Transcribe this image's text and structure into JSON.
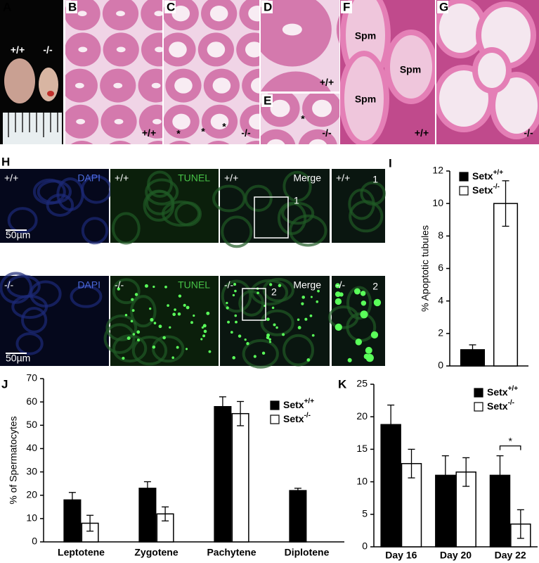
{
  "figure": {
    "image_panels": [
      {
        "label": "A",
        "texts": [
          "+/+",
          "-/-"
        ]
      },
      {
        "label": "B",
        "texts": [
          "+/+"
        ]
      },
      {
        "label": "C",
        "texts": [
          "*",
          "*",
          "*",
          "-/-"
        ]
      },
      {
        "label": "D",
        "texts": [
          "+/+"
        ]
      },
      {
        "label": "E",
        "texts": [
          "*",
          "-/-"
        ]
      },
      {
        "label": "F",
        "texts": [
          "Spm",
          "Spm",
          "Spm",
          "+/+"
        ]
      },
      {
        "label": "G",
        "texts": [
          "-/-"
        ]
      }
    ],
    "fluorescence": {
      "label": "H",
      "rows": [
        {
          "cells": [
            [
              "+/+",
              "DAPI"
            ],
            [
              "+/+",
              "TUNEL"
            ],
            [
              "+/+",
              "Merge",
              "1"
            ],
            [
              "+/+",
              "1"
            ]
          ],
          "scale_bar": "50µm"
        },
        {
          "cells": [
            [
              "-/-",
              "DAPI"
            ],
            [
              "-/-",
              "TUNEL"
            ],
            [
              "-/-",
              "Merge",
              "2"
            ],
            [
              "-/-",
              "2"
            ]
          ],
          "scale_bar": "50µm"
        }
      ]
    }
  },
  "chart_data": [
    {
      "type": "bar",
      "panel_label": "I",
      "ylabel": "% Apoptotic tubules",
      "categories": [
        null
      ],
      "series": [
        {
          "name": "Setx",
          "superscript": "+/+",
          "color": "#000000",
          "values": [
            1.0
          ],
          "errors": [
            0.3
          ]
        },
        {
          "name": "Setx",
          "superscript": "-/-",
          "color": "#ffffff",
          "values": [
            10.0
          ],
          "errors": [
            1.4
          ]
        }
      ],
      "ylim": [
        0,
        12
      ],
      "yticks": [
        0,
        2,
        4,
        6,
        8,
        10,
        12
      ],
      "legend": "upper left"
    },
    {
      "type": "bar",
      "panel_label": "J",
      "ylabel": "% of Spermatocytes",
      "categories": [
        "Leptotene",
        "Zygotene",
        "Pachytene",
        "Diplotene"
      ],
      "series": [
        {
          "name": "Setx",
          "superscript": "+/+",
          "color": "#000000",
          "values": [
            18,
            23,
            58,
            22
          ],
          "errors": [
            3.2,
            2.8,
            4.2,
            1
          ]
        },
        {
          "name": "Setx",
          "superscript": "-/-",
          "color": "#ffffff",
          "values": [
            8,
            12,
            55,
            null
          ],
          "errors": [
            3.4,
            3,
            5.2,
            null
          ]
        }
      ],
      "ylim": [
        0,
        70
      ],
      "yticks": [
        0,
        10,
        20,
        30,
        40,
        50,
        60,
        70
      ],
      "legend": "upper right"
    },
    {
      "type": "bar",
      "panel_label": "K",
      "categories": [
        "Day 16",
        "Day 20",
        "Day 22"
      ],
      "series": [
        {
          "name": "Setx",
          "superscript": "+/+",
          "color": "#000000",
          "values": [
            18.8,
            11,
            11
          ],
          "errors": [
            3,
            3,
            3
          ]
        },
        {
          "name": "Setx",
          "superscript": "-/-",
          "color": "#ffffff",
          "values": [
            12.8,
            11.5,
            3.5
          ],
          "errors": [
            2.2,
            2.2,
            2.2
          ]
        }
      ],
      "ylim": [
        0,
        25
      ],
      "yticks": [
        0,
        5,
        10,
        15,
        20,
        25
      ],
      "legend": "upper right",
      "annotations": [
        {
          "text": "*"
        }
      ]
    }
  ]
}
